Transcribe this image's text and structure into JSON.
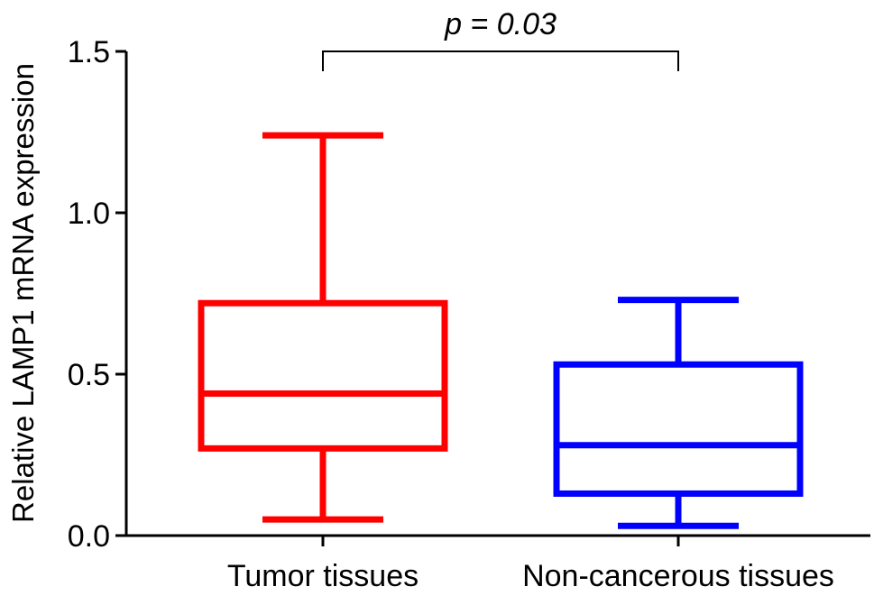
{
  "chart_data": {
    "type": "boxplot",
    "ylabel": "Relative LAMP1 mRNA expression",
    "ylim": [
      0,
      1.5
    ],
    "yticks": [
      {
        "value": 0.0,
        "label": "0.0"
      },
      {
        "value": 0.5,
        "label": "0.5"
      },
      {
        "value": 1.0,
        "label": "1.0"
      },
      {
        "value": 1.5,
        "label": "1.5"
      }
    ],
    "annotation": {
      "text": "p = 0.03"
    },
    "groups": [
      {
        "category": "Tumor tissues",
        "color": "#ff0000",
        "min": 0.05,
        "q1": 0.27,
        "median": 0.44,
        "q3": 0.72,
        "max": 1.24
      },
      {
        "category": "Non-cancerous tissues",
        "color": "#0000ff",
        "min": 0.03,
        "q1": 0.13,
        "median": 0.28,
        "q3": 0.53,
        "max": 0.73
      }
    ]
  }
}
